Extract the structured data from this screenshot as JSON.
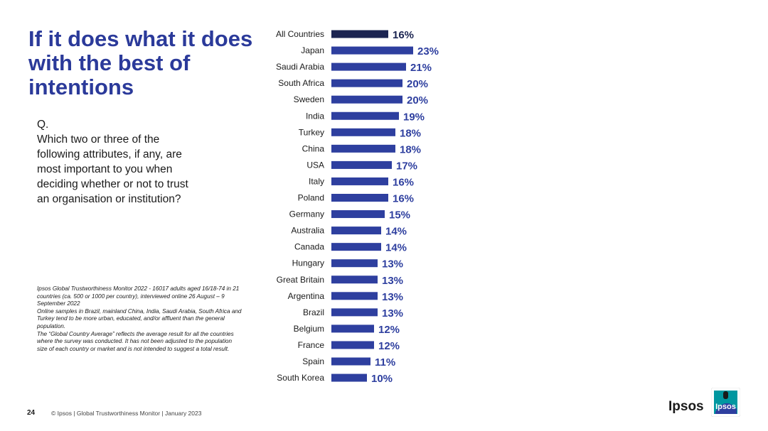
{
  "title": "If it does what it does with the best of intentions",
  "question": {
    "prefix": "Q.",
    "lines": [
      "Which two or three of the",
      "following attributes, if any, are",
      "most important to you when",
      "deciding whether or not to trust",
      "an organisation or institution?"
    ]
  },
  "notes": [
    "Ipsos Global Trustworthiness Monitor 2022 - 16017 adults aged 16/18-74 in 21 countries (ca. 500 or 1000 per country), interviewed online 26 August – 9 September 2022",
    "Online samples in Brazil, mainland China, India, Saudi Arabia, South Africa and Turkey tend to be more urban, educated, and/or affluent than the general population.",
    "The “Global Country Average” reflects the average result for all the countries where the survey was conducted. It has not been adjusted to the population size of each country or market and is not intended to suggest a total result."
  ],
  "footer": {
    "page_number": "24",
    "text": "© Ipsos | Global Trustworthiness Monitor | January 2023"
  },
  "logo": {
    "word": "Ipsos",
    "badge_text": "Ipsos",
    "badge_color": "#0097a0"
  },
  "colors": {
    "highlight_bar": "#1b2451",
    "bar": "#2e3f9f",
    "label": "#2e3f9f"
  },
  "chart_data": {
    "type": "bar",
    "orientation": "horizontal",
    "categories": [
      "All Countries",
      "Japan",
      "Saudi Arabia",
      "South Africa",
      "Sweden",
      "India",
      "Turkey",
      "China",
      "USA",
      "Italy",
      "Poland",
      "Germany",
      "Australia",
      "Canada",
      "Hungary",
      "Great Britain",
      "Argentina",
      "Brazil",
      "Belgium",
      "France",
      "Spain",
      "South Korea"
    ],
    "values": [
      16,
      23,
      21,
      20,
      20,
      19,
      18,
      18,
      17,
      16,
      16,
      15,
      14,
      14,
      13,
      13,
      13,
      13,
      12,
      12,
      11,
      10
    ],
    "value_labels": [
      "16%",
      "23%",
      "21%",
      "20%",
      "20%",
      "19%",
      "18%",
      "18%",
      "17%",
      "16%",
      "16%",
      "15%",
      "14%",
      "14%",
      "13%",
      "13%",
      "13%",
      "13%",
      "12%",
      "12%",
      "11%",
      "10%"
    ],
    "highlight_index": 0
  }
}
